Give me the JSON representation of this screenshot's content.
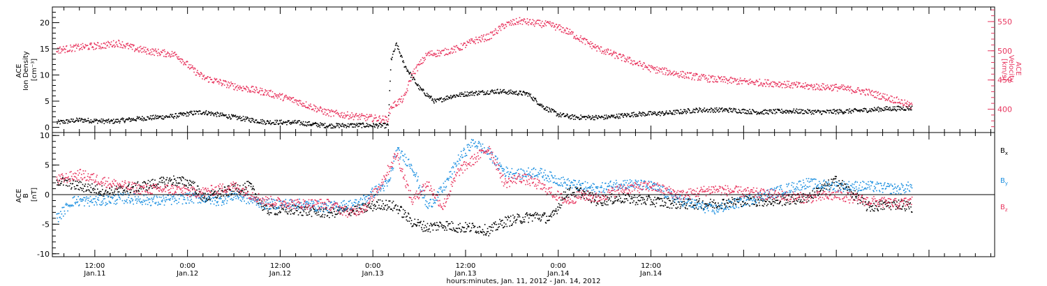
{
  "chart_data": [
    {
      "type": "scatter",
      "panel": "top",
      "ylabel_left": [
        "ACE",
        "Ion Density",
        "[cm⁻³]"
      ],
      "ylabel_right": [
        "ACE",
        "Velocity",
        "[km/s]"
      ],
      "yticks_left": [
        "0",
        "5",
        "10",
        "15",
        "20"
      ],
      "ylim_left": [
        -1,
        23
      ],
      "yticks_right": [
        "400",
        "450",
        "500",
        "550"
      ],
      "ylim_right": [
        360,
        575
      ],
      "series": [
        {
          "axis": "left",
          "color": "#000000",
          "x": [
            7.0,
            10,
            14,
            18,
            22,
            24.5,
            26,
            30,
            34,
            38,
            42,
            46,
            49.9,
            50.3,
            51,
            52,
            54,
            56,
            58,
            60,
            64,
            68,
            70,
            72,
            74,
            78,
            82,
            86,
            90,
            94,
            98,
            102,
            106,
            110,
            114,
            117.8
          ],
          "y": [
            1.0,
            1.5,
            1.2,
            1.8,
            2.2,
            2.8,
            3.0,
            2.0,
            1.1,
            1.0,
            0.4,
            0.5,
            0.4,
            13,
            16,
            12,
            7.5,
            5.0,
            6.0,
            6.5,
            7.0,
            6.5,
            4.0,
            2.5,
            2.0,
            2.0,
            2.6,
            2.8,
            3.4,
            3.4,
            3.0,
            3.2,
            3.0,
            3.2,
            3.6,
            3.8
          ]
        },
        {
          "axis": "right",
          "color": "#e8365f",
          "x": [
            7.0,
            10,
            13,
            15,
            17,
            19,
            22,
            22.5,
            24.5,
            26,
            30,
            34,
            38,
            42,
            46,
            49.8,
            50.3,
            52,
            53,
            55,
            57,
            59,
            61,
            63,
            65,
            67,
            69,
            71,
            73,
            75,
            77,
            80,
            84,
            88,
            92,
            96,
            100,
            104,
            108,
            112,
            116,
            117.8
          ],
          "y": [
            502,
            507,
            510,
            514,
            505,
            500,
            495,
            494,
            470,
            455,
            440,
            430,
            415,
            395,
            388,
            383,
            405,
            420,
            460,
            495,
            498,
            505,
            518,
            525,
            545,
            552,
            548,
            545,
            535,
            520,
            505,
            490,
            470,
            460,
            452,
            448,
            445,
            440,
            438,
            430,
            415,
            405
          ]
        }
      ]
    },
    {
      "type": "scatter",
      "panel": "bottom",
      "ylabel_left": [
        "ACE",
        "B",
        "[nT]"
      ],
      "yticks_left": [
        "-10",
        "-5",
        "0",
        "5",
        "10"
      ],
      "ylim_left": [
        -10.5,
        10.5
      ],
      "legend_position": "right",
      "series": [
        {
          "name": "Bx",
          "color": "#000000",
          "x": [
            7.0,
            10,
            14,
            18,
            22,
            24.5,
            26,
            30,
            32,
            34,
            38,
            42,
            46,
            49,
            51,
            53,
            55,
            57,
            59,
            61,
            63,
            65,
            67,
            69,
            71,
            73,
            75,
            77,
            80,
            84,
            88,
            92,
            96,
            100,
            104,
            108,
            112,
            116,
            117.8
          ],
          "y": [
            2.5,
            1.5,
            0.5,
            1.5,
            2.5,
            2.0,
            -0.5,
            1.0,
            1.5,
            -2.5,
            -2.5,
            -3.0,
            -2.5,
            -1.5,
            -2.0,
            -4.5,
            -5.5,
            -5.0,
            -5.5,
            -5.5,
            -6.0,
            -4.5,
            -4.0,
            -3.5,
            -4.0,
            0.5,
            0.5,
            -1.0,
            -0.5,
            -1.0,
            -1.5,
            -1.5,
            -1.0,
            -1.0,
            -0.5,
            2.5,
            -2.0,
            -1.5,
            -2.0
          ]
        },
        {
          "name": "By",
          "color": "#1b8fe0",
          "x": [
            7.0,
            9,
            12,
            16,
            20,
            24,
            26,
            28,
            30,
            34,
            38,
            42,
            46,
            48,
            50,
            51,
            53,
            55,
            57,
            59,
            61,
            63,
            65,
            67,
            69,
            71,
            73,
            75,
            77,
            80,
            84,
            88,
            92,
            96,
            100,
            104,
            108,
            112,
            116,
            117.8
          ],
          "y": [
            -4.0,
            -1.0,
            -1.0,
            -0.5,
            -1.0,
            -0.5,
            -0.5,
            -1.0,
            0.0,
            -1.5,
            -1.5,
            -2.0,
            -1.5,
            0.5,
            2.0,
            7.5,
            5.0,
            -2.0,
            1.0,
            6.0,
            9.0,
            7.0,
            4.0,
            3.5,
            4.0,
            3.0,
            2.0,
            1.5,
            1.0,
            2.0,
            1.5,
            -1.0,
            -2.5,
            -1.0,
            0.5,
            2.0,
            1.5,
            1.5,
            1.0,
            1.5
          ]
        },
        {
          "name": "Bz",
          "color": "#e8365f",
          "x": [
            7.0,
            10,
            14,
            18,
            22,
            24.5,
            26,
            30,
            34,
            38,
            42,
            45,
            47,
            49,
            51,
            53,
            55,
            57,
            59,
            61,
            63,
            65,
            67,
            69,
            71,
            73,
            75,
            77,
            80,
            84,
            88,
            92,
            96,
            100,
            104,
            108,
            112,
            116,
            117.8
          ],
          "y": [
            2.5,
            3.5,
            2.0,
            1.0,
            1.0,
            0.5,
            0.5,
            1.5,
            -1.0,
            -1.5,
            -1.5,
            -3.0,
            -2.0,
            2.0,
            7.0,
            -1.0,
            2.0,
            -2.0,
            4.0,
            6.0,
            8.0,
            2.0,
            3.0,
            2.0,
            0.5,
            -1.0,
            0.0,
            -0.5,
            1.0,
            1.5,
            0.0,
            1.0,
            0.5,
            0.0,
            -0.5,
            0.0,
            -1.0,
            -1.5,
            -1.0
          ]
        }
      ],
      "legend": [
        {
          "base": "B",
          "sub": "x",
          "color": "#000000"
        },
        {
          "base": "B",
          "sub": "y",
          "color": "#1b8fe0"
        },
        {
          "base": "B",
          "sub": "z",
          "color": "#e8365f"
        }
      ]
    }
  ],
  "x_axis": {
    "xlim_hours": [
      6.5,
      128.5
    ],
    "ticks": [
      {
        "hour": 12,
        "time": "12:00",
        "date": "Jan.11"
      },
      {
        "hour": 24,
        "time": "0:00",
        "date": "Jan.12"
      },
      {
        "hour": 36,
        "time": "12:00",
        "date": "Jan.12"
      },
      {
        "hour": 48,
        "time": "0:00",
        "date": "Jan.13"
      },
      {
        "hour": 60,
        "time": "12:00",
        "date": "Jan.13"
      },
      {
        "hour": 72,
        "time": "0:00",
        "date": "Jan.14"
      },
      {
        "hour": 84,
        "time": "12:00",
        "date": "Jan.14"
      }
    ],
    "minor_step_hours": 2,
    "label": "hours:minutes, Jan. 11, 2012 - Jan. 14, 2012"
  }
}
